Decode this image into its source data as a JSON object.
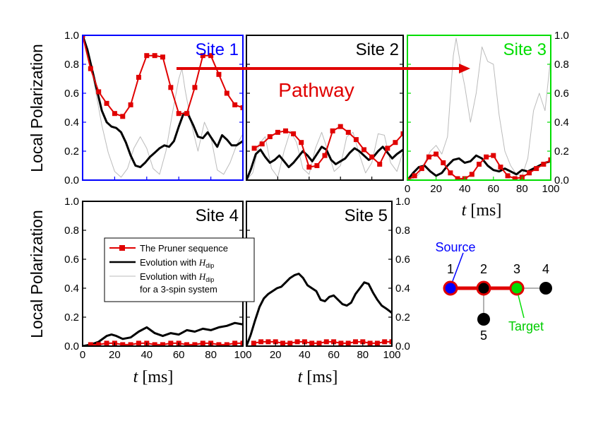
{
  "colors": {
    "pruner": "#e00000",
    "dipolar": "#000000",
    "three_spin": "#bbbbbb",
    "site1_frame": "#0000ff",
    "site3_frame": "#00dd00",
    "source": "#0000ff",
    "target": "#00dd00"
  },
  "ylabel": "Local Polarization",
  "xlabel_var": "t",
  "xlabel_unit": "[ms]",
  "pathway_label": "Pathway",
  "legend": {
    "pruner": "The Pruner sequence",
    "evo_prefix": "Evolution with",
    "h_symbol": "H",
    "h_sub": "dip",
    "three_spin_suffix": "for a 3-spin system"
  },
  "diagram": {
    "source_label": "Source",
    "target_label": "Target",
    "nodes": [
      "1",
      "2",
      "3",
      "4",
      "5"
    ]
  },
  "chart_data": [
    {
      "type": "line",
      "title": "Site 1",
      "xlim": [
        0,
        100
      ],
      "ylim": [
        0,
        1
      ],
      "yticks": [
        "0.0",
        "0.2",
        "0.4",
        "0.6",
        "0.8",
        "1.0"
      ],
      "xticks": [],
      "series": [
        {
          "name": "The Pruner sequence",
          "x": [
            0,
            5,
            10,
            15,
            20,
            25,
            30,
            35,
            40,
            45,
            50,
            55,
            60,
            65,
            70,
            75,
            80,
            85,
            90,
            95,
            100
          ],
          "values": [
            1.0,
            0.77,
            0.61,
            0.53,
            0.46,
            0.44,
            0.52,
            0.71,
            0.86,
            0.86,
            0.85,
            0.64,
            0.46,
            0.46,
            0.64,
            0.86,
            0.86,
            0.73,
            0.6,
            0.52,
            0.5
          ]
        },
        {
          "name": "Evolution with H_dip",
          "x": [
            0,
            3,
            6,
            9,
            12,
            15,
            18,
            21,
            24,
            27,
            30,
            33,
            36,
            39,
            42,
            45,
            48,
            51,
            54,
            57,
            60,
            63,
            66,
            69,
            72,
            75,
            78,
            81,
            84,
            87,
            90,
            93,
            96,
            100
          ],
          "values": [
            1.0,
            0.9,
            0.76,
            0.62,
            0.48,
            0.4,
            0.37,
            0.36,
            0.33,
            0.26,
            0.17,
            0.1,
            0.09,
            0.12,
            0.16,
            0.19,
            0.22,
            0.24,
            0.23,
            0.27,
            0.37,
            0.46,
            0.45,
            0.38,
            0.3,
            0.29,
            0.33,
            0.28,
            0.23,
            0.31,
            0.28,
            0.24,
            0.24,
            0.27
          ]
        },
        {
          "name": "Evolution with H_dip for a 3-spin system",
          "x": [
            0,
            4,
            8,
            12,
            16,
            20,
            24,
            28,
            32,
            36,
            40,
            44,
            48,
            52,
            56,
            60,
            62,
            64,
            68,
            72,
            76,
            80,
            84,
            88,
            92,
            96,
            100
          ],
          "values": [
            1.0,
            0.86,
            0.62,
            0.38,
            0.19,
            0.06,
            0.02,
            0.08,
            0.22,
            0.3,
            0.22,
            0.08,
            0.04,
            0.2,
            0.46,
            0.7,
            0.77,
            0.62,
            0.38,
            0.2,
            0.4,
            0.3,
            0.07,
            0.04,
            0.12,
            0.24,
            0.32
          ]
        }
      ]
    },
    {
      "type": "line",
      "title": "Site 2",
      "xlim": [
        0,
        100
      ],
      "ylim": [
        0,
        1
      ],
      "yticks": [],
      "xticks": [],
      "series": [
        {
          "name": "The Pruner sequence",
          "x": [
            5,
            10,
            15,
            20,
            25,
            30,
            35,
            40,
            45,
            50,
            55,
            60,
            65,
            70,
            75,
            80,
            85,
            90,
            95,
            100
          ],
          "values": [
            0.22,
            0.25,
            0.3,
            0.33,
            0.34,
            0.32,
            0.26,
            0.09,
            0.1,
            0.17,
            0.34,
            0.37,
            0.33,
            0.28,
            0.21,
            0.16,
            0.11,
            0.22,
            0.26,
            0.32
          ]
        },
        {
          "name": "Evolution with H_dip",
          "x": [
            0,
            3,
            6,
            9,
            12,
            15,
            18,
            21,
            24,
            27,
            30,
            33,
            36,
            39,
            42,
            45,
            48,
            51,
            54,
            57,
            60,
            63,
            66,
            69,
            72,
            75,
            78,
            81,
            84,
            87,
            90,
            93,
            96,
            100
          ],
          "values": [
            0,
            0.08,
            0.18,
            0.21,
            0.16,
            0.12,
            0.14,
            0.17,
            0.13,
            0.09,
            0.12,
            0.16,
            0.2,
            0.17,
            0.13,
            0.18,
            0.23,
            0.21,
            0.14,
            0.11,
            0.13,
            0.15,
            0.19,
            0.22,
            0.2,
            0.17,
            0.14,
            0.16,
            0.2,
            0.23,
            0.19,
            0.15,
            0.18,
            0.21
          ]
        },
        {
          "name": "Evolution with H_dip for a 3-spin system",
          "x": [
            0,
            4,
            8,
            12,
            16,
            20,
            24,
            28,
            32,
            36,
            40,
            44,
            48,
            52,
            56,
            60,
            64,
            68,
            72,
            76,
            80,
            84,
            88,
            92,
            96,
            100
          ],
          "values": [
            0,
            0.05,
            0.25,
            0.3,
            0.08,
            0.02,
            0.2,
            0.34,
            0.26,
            0.08,
            0.04,
            0.22,
            0.33,
            0.2,
            0.06,
            0.1,
            0.3,
            0.33,
            0.18,
            0.05,
            0.12,
            0.32,
            0.31,
            0.12,
            0.06,
            0.2
          ]
        }
      ]
    },
    {
      "type": "line",
      "title": "Site 3",
      "xlim": [
        0,
        100
      ],
      "ylim": [
        0,
        1
      ],
      "yticks": [
        "0.0",
        "0.2",
        "0.4",
        "0.6",
        "0.8",
        "1.0"
      ],
      "xticks": [
        "0",
        "20",
        "40",
        "60",
        "80",
        "100"
      ],
      "series": [
        {
          "name": "The Pruner sequence",
          "x": [
            0,
            5,
            10,
            15,
            20,
            25,
            30,
            35,
            40,
            45,
            50,
            55,
            60,
            65,
            70,
            75,
            80,
            85,
            90,
            95,
            100
          ],
          "values": [
            0,
            0.03,
            0.08,
            0.16,
            0.18,
            0.12,
            0.05,
            0.01,
            0.01,
            0.04,
            0.11,
            0.16,
            0.17,
            0.09,
            0.03,
            0.01,
            0.02,
            0.05,
            0.08,
            0.11,
            0.14
          ]
        },
        {
          "name": "Evolution with H_dip",
          "x": [
            0,
            4,
            8,
            12,
            16,
            20,
            24,
            28,
            32,
            36,
            40,
            44,
            48,
            52,
            56,
            60,
            64,
            68,
            72,
            76,
            80,
            84,
            88,
            92,
            96,
            100
          ],
          "values": [
            0,
            0.05,
            0.09,
            0.1,
            0.06,
            0.03,
            0.05,
            0.1,
            0.14,
            0.15,
            0.12,
            0.13,
            0.17,
            0.15,
            0.1,
            0.07,
            0.06,
            0.08,
            0.06,
            0.04,
            0.07,
            0.06,
            0.08,
            0.1,
            0.12,
            0.13
          ]
        },
        {
          "name": "Evolution with H_dip for a 3-spin system",
          "x": [
            0,
            4,
            8,
            12,
            16,
            20,
            24,
            28,
            32,
            34,
            36,
            38,
            40,
            44,
            48,
            52,
            56,
            60,
            64,
            68,
            72,
            76,
            80,
            84,
            88,
            92,
            96,
            100
          ],
          "values": [
            0,
            0.01,
            0.04,
            0.12,
            0.2,
            0.24,
            0.18,
            0.3,
            0.86,
            0.98,
            0.86,
            0.75,
            0.65,
            0.4,
            0.6,
            0.92,
            0.82,
            0.8,
            0.45,
            0.2,
            0.1,
            0.04,
            0.03,
            0.15,
            0.48,
            0.6,
            0.48,
            0.85
          ]
        }
      ]
    },
    {
      "type": "line",
      "title": "Site 4",
      "xlim": [
        0,
        100
      ],
      "ylim": [
        0,
        1
      ],
      "yticks": [
        "0.0",
        "0.2",
        "0.4",
        "0.6",
        "0.8",
        "1.0"
      ],
      "xticks": [
        "0",
        "20",
        "40",
        "60",
        "80",
        "100"
      ],
      "series": [
        {
          "name": "The Pruner sequence",
          "x": [
            5,
            10,
            15,
            20,
            25,
            30,
            35,
            40,
            45,
            50,
            55,
            60,
            65,
            70,
            75,
            80,
            85,
            90,
            95,
            100
          ],
          "values": [
            0.01,
            0.01,
            0.02,
            0.02,
            0.01,
            0.01,
            0.02,
            0.02,
            0.01,
            0.01,
            0.02,
            0.02,
            0.01,
            0.01,
            0.02,
            0.02,
            0.01,
            0.01,
            0.02,
            0.02
          ]
        },
        {
          "name": "Evolution with H_dip",
          "x": [
            0,
            5,
            10,
            15,
            18,
            21,
            25,
            30,
            35,
            40,
            45,
            50,
            55,
            60,
            65,
            70,
            75,
            80,
            85,
            90,
            95,
            100
          ],
          "values": [
            0,
            0.01,
            0.03,
            0.07,
            0.08,
            0.07,
            0.05,
            0.06,
            0.1,
            0.13,
            0.09,
            0.07,
            0.09,
            0.08,
            0.11,
            0.1,
            0.12,
            0.11,
            0.13,
            0.14,
            0.16,
            0.15
          ]
        }
      ]
    },
    {
      "type": "line",
      "title": "Site 5",
      "xlim": [
        0,
        100
      ],
      "ylim": [
        0,
        1
      ],
      "yticks": [
        "0.0",
        "0.2",
        "0.4",
        "0.6",
        "0.8",
        "1.0"
      ],
      "xticks": [
        "20",
        "40",
        "60",
        "80",
        "100"
      ],
      "series": [
        {
          "name": "The Pruner sequence",
          "x": [
            5,
            10,
            15,
            20,
            25,
            30,
            35,
            40,
            45,
            50,
            55,
            60,
            65,
            70,
            75,
            80,
            85,
            90,
            95,
            100
          ],
          "values": [
            0.02,
            0.03,
            0.03,
            0.03,
            0.02,
            0.02,
            0.03,
            0.03,
            0.02,
            0.02,
            0.03,
            0.03,
            0.02,
            0.02,
            0.03,
            0.03,
            0.02,
            0.02,
            0.03,
            0.03
          ]
        },
        {
          "name": "Evolution with H_dip",
          "x": [
            0,
            3,
            6,
            9,
            12,
            15,
            18,
            21,
            24,
            27,
            30,
            33,
            36,
            39,
            42,
            45,
            48,
            51,
            54,
            57,
            60,
            63,
            66,
            69,
            72,
            75,
            78,
            81,
            84,
            87,
            90,
            93,
            96,
            100
          ],
          "values": [
            0,
            0.08,
            0.18,
            0.27,
            0.33,
            0.36,
            0.38,
            0.4,
            0.41,
            0.44,
            0.47,
            0.49,
            0.5,
            0.47,
            0.42,
            0.4,
            0.38,
            0.32,
            0.31,
            0.34,
            0.35,
            0.32,
            0.29,
            0.28,
            0.3,
            0.36,
            0.4,
            0.44,
            0.43,
            0.37,
            0.32,
            0.28,
            0.26,
            0.23
          ]
        }
      ]
    }
  ]
}
